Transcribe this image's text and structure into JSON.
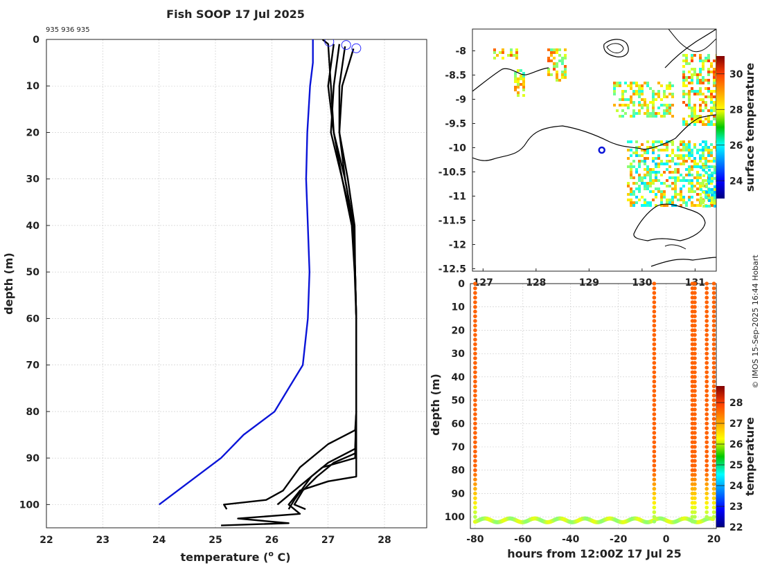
{
  "colors": {
    "blue_profile": "#0a14d8",
    "black_profile": "#000000",
    "marker": "#2b2bff"
  },
  "chart_data": [
    {
      "type": "line",
      "id": "profile",
      "title": "Fish SOOP 17 Jul 2025",
      "subtitle": "935 936 935",
      "xlabel_main": "temperature (",
      "xlabel_sup": "o",
      "xlabel_tail": " C)",
      "ylabel": "depth (m)",
      "xlim": [
        22,
        28.75
      ],
      "ylim": [
        105,
        0
      ],
      "xticks": [
        22,
        23,
        24,
        25,
        26,
        27,
        28
      ],
      "yticks": [
        0,
        10,
        20,
        30,
        40,
        50,
        60,
        70,
        80,
        90,
        100
      ],
      "series": [
        {
          "name": "blue",
          "color": "#0a14d8",
          "points": [
            [
              26.73,
              0
            ],
            [
              26.73,
              5
            ],
            [
              26.68,
              10
            ],
            [
              26.63,
              20
            ],
            [
              26.61,
              30
            ],
            [
              26.64,
              40
            ],
            [
              26.67,
              50
            ],
            [
              26.64,
              60
            ],
            [
              26.55,
              70
            ],
            [
              26.3,
              75
            ],
            [
              26.05,
              80
            ],
            [
              25.5,
              85
            ],
            [
              25.1,
              90
            ],
            [
              24.0,
              100
            ]
          ]
        },
        {
          "name": "black-1",
          "color": "#000000",
          "points": [
            [
              26.9,
              0
            ],
            [
              27.0,
              1
            ],
            [
              27.05,
              10
            ],
            [
              27.1,
              20
            ],
            [
              27.25,
              30
            ],
            [
              27.42,
              40
            ],
            [
              27.47,
              50
            ],
            [
              27.5,
              60
            ],
            [
              27.5,
              70
            ],
            [
              27.5,
              80
            ],
            [
              27.48,
              84
            ],
            [
              27.0,
              87
            ],
            [
              26.5,
              92
            ],
            [
              26.2,
              97
            ],
            [
              25.9,
              99
            ],
            [
              25.15,
              100
            ],
            [
              25.2,
              101
            ]
          ]
        },
        {
          "name": "black-2",
          "color": "#000000",
          "points": [
            [
              27.3,
              1.5
            ],
            [
              27.2,
              10
            ],
            [
              27.2,
              20
            ],
            [
              27.3,
              30
            ],
            [
              27.45,
              40
            ],
            [
              27.48,
              50
            ],
            [
              27.5,
              60
            ],
            [
              27.5,
              70
            ],
            [
              27.5,
              80
            ],
            [
              27.48,
              88
            ],
            [
              27.0,
              91
            ],
            [
              26.7,
              94
            ],
            [
              26.4,
              99
            ],
            [
              26.3,
              101
            ]
          ]
        },
        {
          "name": "black-3",
          "color": "#000000",
          "points": [
            [
              27.45,
              2
            ],
            [
              27.25,
              10
            ],
            [
              27.2,
              20
            ],
            [
              27.35,
              30
            ],
            [
              27.47,
              40
            ],
            [
              27.48,
              50
            ],
            [
              27.5,
              60
            ],
            [
              27.5,
              70
            ],
            [
              27.5,
              80
            ],
            [
              27.48,
              89
            ],
            [
              27.1,
              91
            ],
            [
              26.8,
              94
            ],
            [
              26.55,
              97
            ],
            [
              26.4,
              100
            ],
            [
              26.6,
              101
            ]
          ]
        },
        {
          "name": "black-4",
          "color": "#000000",
          "points": [
            [
              27.1,
              1
            ],
            [
              27.0,
              10
            ],
            [
              27.1,
              20
            ],
            [
              27.3,
              30
            ],
            [
              27.45,
              40
            ],
            [
              27.48,
              50
            ],
            [
              27.5,
              60
            ],
            [
              27.5,
              70
            ],
            [
              27.5,
              80
            ],
            [
              27.48,
              90
            ],
            [
              26.9,
              92
            ],
            [
              26.6,
              95
            ],
            [
              26.3,
              98
            ],
            [
              26.1,
              100
            ]
          ]
        },
        {
          "name": "black-5",
          "color": "#000000",
          "points": [
            [
              27.2,
              1
            ],
            [
              27.1,
              10
            ],
            [
              27.05,
              20
            ],
            [
              27.25,
              30
            ],
            [
              27.45,
              40
            ],
            [
              27.48,
              50
            ],
            [
              27.5,
              60
            ],
            [
              27.5,
              70
            ],
            [
              27.5,
              80
            ],
            [
              27.5,
              94
            ],
            [
              27.0,
              95
            ],
            [
              26.5,
              97
            ],
            [
              26.3,
              100
            ],
            [
              26.5,
              102
            ],
            [
              25.4,
              103
            ],
            [
              26.3,
              104
            ],
            [
              25.1,
              104.5
            ]
          ]
        }
      ],
      "surface_markers": [
        [
          27.02,
          0.5
        ],
        [
          27.32,
          1.2
        ],
        [
          27.5,
          1.9
        ]
      ]
    },
    {
      "type": "heatmap",
      "id": "map",
      "xlim": [
        126.8,
        131.4
      ],
      "ylim": [
        -12.55,
        -7.55
      ],
      "xticks": [
        127,
        128,
        129,
        130,
        131
      ],
      "xtick_labels": [
        "127",
        "128",
        "129",
        "130",
        "131"
      ],
      "yticks": [
        -8,
        -8.5,
        -9,
        -9.5,
        -10,
        -10.5,
        -11,
        -11.5,
        -12,
        -12.5
      ],
      "ytick_labels": [
        "-8",
        "-8.5",
        "-9",
        "-9.5",
        "-10",
        "-10.5",
        "-11",
        "-11.5",
        "-12",
        "-12.5"
      ],
      "colorbar_label": "surface temperature",
      "colorbar_range": [
        23,
        31
      ],
      "colorbar_ticks": [
        24,
        26,
        28,
        30
      ],
      "ship_position": [
        129.24,
        -10.05
      ]
    },
    {
      "type": "scatter",
      "id": "timedepth",
      "xlabel": "hours from 12:00Z 17 Jul 25",
      "ylabel": "depth (m)",
      "xlim": [
        -82,
        21
      ],
      "ylim": [
        105,
        0
      ],
      "xticks": [
        -80,
        -60,
        -40,
        -20,
        0,
        20
      ],
      "yticks": [
        0,
        10,
        20,
        30,
        40,
        50,
        60,
        70,
        80,
        90,
        100
      ],
      "colorbar_label": "temperature",
      "colorbar_range": [
        22,
        28.8
      ],
      "colorbar_ticks": [
        22,
        23,
        24,
        25,
        26,
        27,
        28
      ],
      "casts": [
        {
          "hour": -80,
          "bottom": 101
        },
        {
          "hour": -5,
          "bottom": 102
        },
        {
          "hour": 11,
          "bottom": 102
        },
        {
          "hour": 12,
          "bottom": 102
        },
        {
          "hour": 17,
          "bottom": 101
        },
        {
          "hour": 20,
          "bottom": 100
        }
      ]
    }
  ],
  "credit": "© IMOS 15-Sep-2025 16:44 Hobart"
}
